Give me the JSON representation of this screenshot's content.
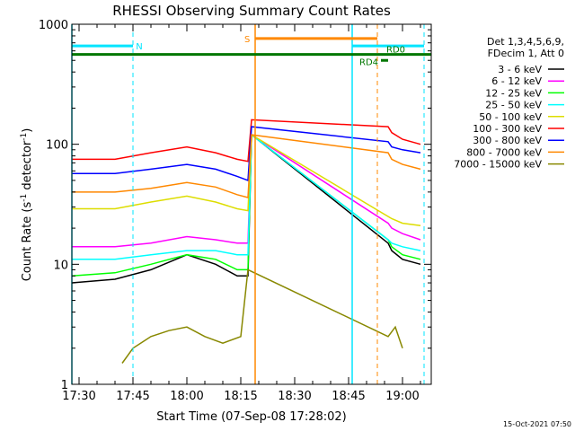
{
  "chart_data": {
    "type": "line",
    "title": "RHESSI Observing Summary Count Rates",
    "xlabel": "Start Time (07-Sep-08 17:28:02)",
    "ylabel_main": "Count Rate (s",
    "ylabel_sup1": "-1",
    "ylabel_mid": " detector",
    "ylabel_sup2": "-1",
    "ylabel_end": ")",
    "yscale": "log",
    "ylim": [
      1,
      1000
    ],
    "xlim_minutes": [
      -2,
      98
    ],
    "x_ticks": [
      {
        "min": 0,
        "label": "17:30"
      },
      {
        "min": 15,
        "label": "17:45"
      },
      {
        "min": 30,
        "label": "18:00"
      },
      {
        "min": 45,
        "label": "18:15"
      },
      {
        "min": 60,
        "label": "18:30"
      },
      {
        "min": 75,
        "label": "18:45"
      },
      {
        "min": 90,
        "label": "19:00"
      }
    ],
    "y_ticks": [
      {
        "value": 1,
        "label": "1"
      },
      {
        "value": 10,
        "label": "10"
      },
      {
        "value": 100,
        "label": "100"
      },
      {
        "value": 1000,
        "label": "1000"
      }
    ],
    "legend_header": [
      "Det 1,3,4,5,6,9,",
      "FDecim 1, Att 0"
    ],
    "timestamp": "15-Oct-2021 07:50",
    "series": [
      {
        "name": "3 - 6 keV",
        "color": "#000000",
        "x": [
          -2,
          10,
          20,
          30,
          38,
          44,
          47,
          48,
          86,
          87,
          90,
          95
        ],
        "y": [
          7,
          7.5,
          9,
          12,
          10,
          8,
          8,
          120,
          15,
          13,
          11,
          10
        ]
      },
      {
        "name": "6 - 12 keV",
        "color": "#ff00ff",
        "x": [
          -2,
          10,
          20,
          30,
          38,
          44,
          47,
          48,
          86,
          87,
          90,
          95
        ],
        "y": [
          14,
          14,
          15,
          17,
          16,
          15,
          15,
          120,
          22,
          20,
          18,
          16
        ]
      },
      {
        "name": "12 - 25 keV",
        "color": "#00ff00",
        "x": [
          -2,
          10,
          20,
          30,
          38,
          44,
          47,
          48,
          86,
          87,
          90,
          95
        ],
        "y": [
          8,
          8.5,
          10,
          12,
          11,
          9,
          9,
          120,
          16,
          14,
          12,
          11
        ]
      },
      {
        "name": "25 - 50 keV",
        "color": "#00ffff",
        "x": [
          -2,
          10,
          20,
          30,
          38,
          44,
          47,
          48,
          86,
          87,
          90,
          95
        ],
        "y": [
          11,
          11,
          12,
          13,
          13,
          12,
          12,
          120,
          16,
          15,
          14,
          13
        ]
      },
      {
        "name": "50 - 100 keV",
        "color": "#dddd00",
        "x": [
          -2,
          10,
          20,
          30,
          38,
          44,
          47,
          48,
          86,
          87,
          90,
          95
        ],
        "y": [
          29,
          29,
          33,
          37,
          33,
          29,
          28,
          120,
          25,
          24,
          22,
          21
        ]
      },
      {
        "name": "100 - 300 keV",
        "color": "#ff0000",
        "x": [
          -2,
          10,
          20,
          30,
          38,
          44,
          47,
          48,
          86,
          87,
          90,
          95
        ],
        "y": [
          75,
          75,
          85,
          95,
          85,
          75,
          72,
          160,
          140,
          125,
          110,
          100
        ]
      },
      {
        "name": "300 - 800 keV",
        "color": "#0000ff",
        "x": [
          -2,
          10,
          20,
          30,
          38,
          44,
          47,
          48,
          86,
          87,
          90,
          95
        ],
        "y": [
          57,
          57,
          62,
          68,
          62,
          54,
          50,
          140,
          105,
          95,
          90,
          85
        ]
      },
      {
        "name": "800 - 7000 keV",
        "color": "#ff8800",
        "x": [
          -2,
          10,
          20,
          30,
          38,
          44,
          47,
          48,
          86,
          87,
          90,
          95
        ],
        "y": [
          40,
          40,
          43,
          48,
          44,
          38,
          36,
          120,
          85,
          75,
          68,
          62
        ]
      },
      {
        "name": "7000 - 15000 keV",
        "color": "#888800",
        "x": [
          12,
          15,
          20,
          25,
          30,
          35,
          40,
          45,
          47,
          86,
          88,
          90
        ],
        "y": [
          1.5,
          2,
          2.5,
          2.8,
          3,
          2.5,
          2.2,
          2.5,
          9,
          2.5,
          3,
          2
        ]
      }
    ],
    "annotations": {
      "night_label": "N",
      "saa_label": "S",
      "rd4_label": "RD4",
      "rd0_label": "RD0"
    }
  }
}
